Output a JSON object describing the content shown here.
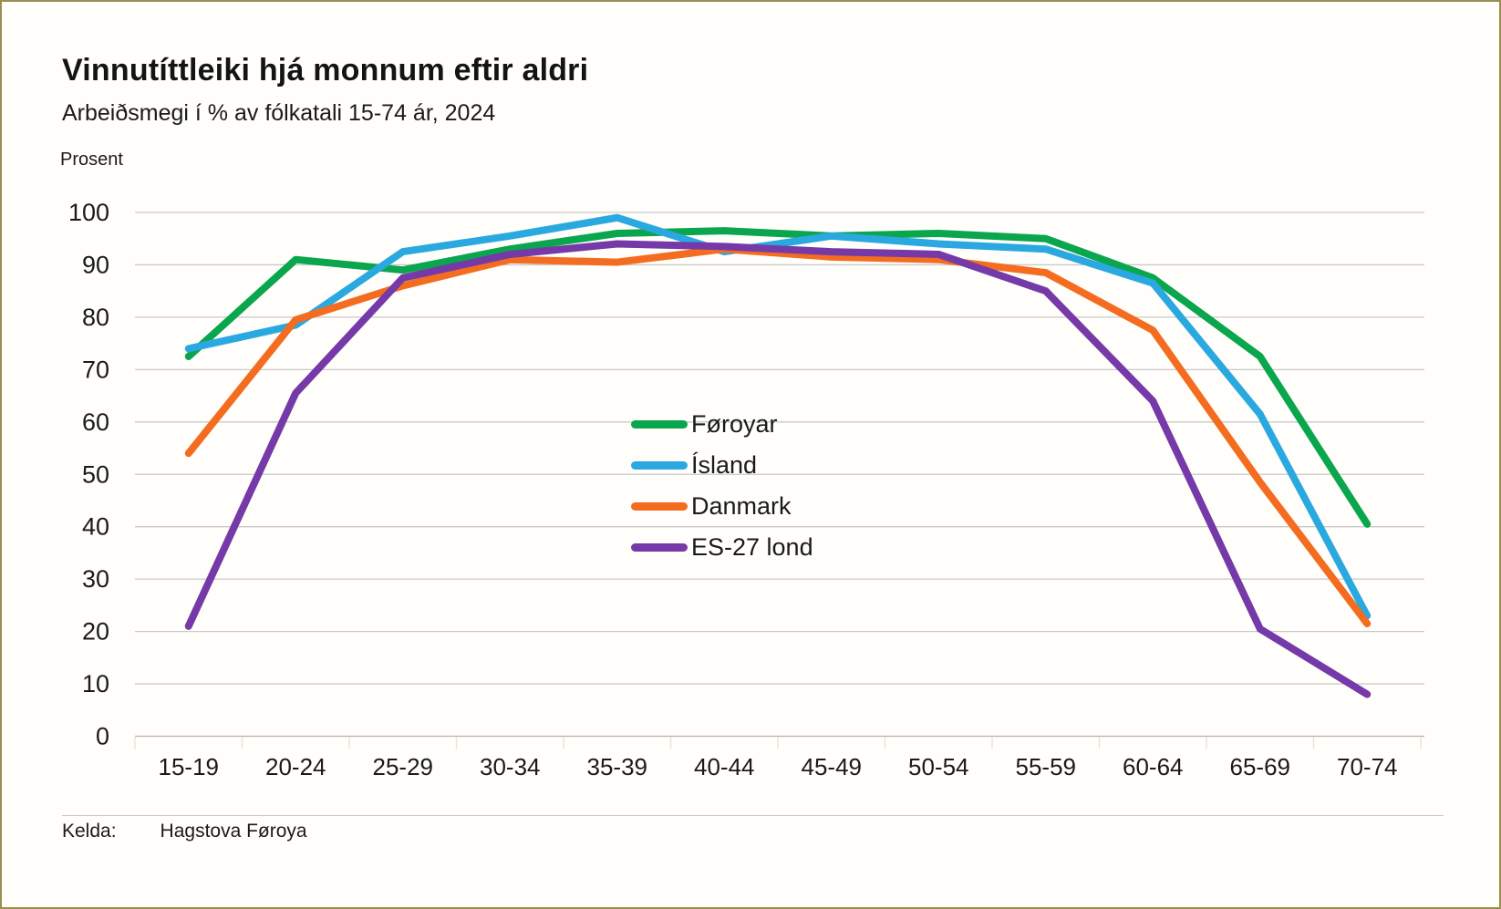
{
  "header": {
    "title": "Vinnutíttleiki hjá monnum eftir aldri",
    "subtitle": "Arbeiðsmegi í % av fólkatali 15-74 ár, 2024"
  },
  "chart_data": {
    "type": "line",
    "title": "Vinnutíttleiki hjá monnum eftir aldri",
    "subtitle": "Arbeiðsmegi í % av fólkatali 15-74 ár, 2024",
    "ylabel": "Prosent",
    "xlabel": "",
    "ylim": [
      0,
      100
    ],
    "ytick_step": 10,
    "grid": "horizontal",
    "legend_position": "inside-center",
    "categories": [
      "15-19",
      "20-24",
      "25-29",
      "30-34",
      "35-39",
      "40-44",
      "45-49",
      "50-54",
      "55-59",
      "60-64",
      "65-69",
      "70-74"
    ],
    "series": [
      {
        "name": "Føroyar",
        "color": "#0aa64e",
        "values": [
          72.5,
          91,
          89,
          93,
          96,
          96.5,
          95.5,
          96,
          95,
          87.5,
          72.5,
          40.5
        ]
      },
      {
        "name": "Ísland",
        "color": "#2aa9e0",
        "values": [
          74,
          78.5,
          92.5,
          95.5,
          99,
          92.5,
          95.5,
          94,
          93,
          86.5,
          61.5,
          23
        ]
      },
      {
        "name": "Danmark",
        "color": "#f46c1f",
        "values": [
          54,
          79.5,
          86,
          91,
          90.5,
          93,
          91.5,
          91,
          88.5,
          77.5,
          48.5,
          21.5
        ]
      },
      {
        "name": "ES-27 lond",
        "color": "#7539a8",
        "values": [
          21,
          65.5,
          87.5,
          92,
          94,
          93.5,
          92.5,
          92,
          85,
          64,
          20.5,
          8
        ]
      }
    ]
  },
  "footer": {
    "source_label": "Kelda:",
    "source_value": "Hagstova Føroya"
  }
}
